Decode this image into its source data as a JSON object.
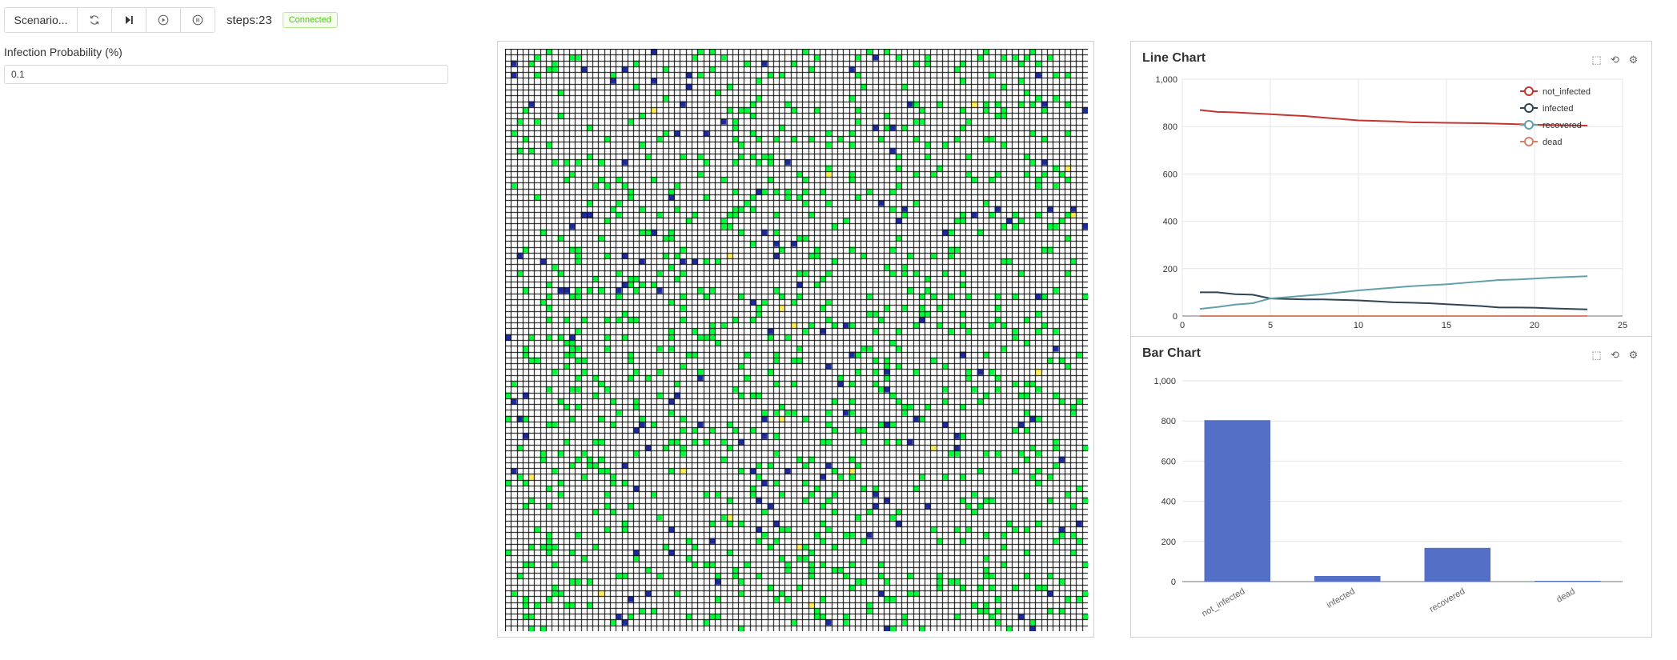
{
  "toolbar": {
    "scenario_label": "Scenario...",
    "reset_icon": "refresh-icon",
    "step_icon": "step-forward-icon",
    "play_icon": "play-circle-icon",
    "pause_icon": "pause-circle-icon",
    "steps_text": "steps:23",
    "status": "Connected"
  },
  "params": {
    "infection_probability": {
      "label": "Infection Probability (%)",
      "value": "0.1"
    }
  },
  "colors": {
    "empty": "#ffffff",
    "not_infected": "#00ff3a",
    "infected": "#1c2aa0",
    "recovered": "#ffee55",
    "gridline": "#000000",
    "bar": "#5470c6"
  },
  "line_chart": {
    "title": "Line Chart",
    "tool_icons": [
      "zoom-icon",
      "zoom-reset-icon",
      "gear-icon"
    ]
  },
  "bar_chart": {
    "title": "Bar Chart",
    "tool_icons": [
      "zoom-icon",
      "zoom-reset-icon",
      "gear-icon"
    ]
  },
  "chart_data": [
    {
      "type": "line",
      "title": "Line Chart",
      "xlim": [
        0,
        25
      ],
      "ylim": [
        0,
        1000
      ],
      "x_ticks": [
        "0",
        "5",
        "10",
        "15",
        "20",
        "25"
      ],
      "y_ticks": [
        "0",
        "200",
        "400",
        "600",
        "800",
        "1,000"
      ],
      "legend_position": "top-right",
      "grid": true,
      "x": [
        1,
        2,
        3,
        4,
        5,
        6,
        7,
        8,
        9,
        10,
        11,
        12,
        13,
        14,
        15,
        16,
        17,
        18,
        19,
        20,
        21,
        22,
        23
      ],
      "series": [
        {
          "name": "not_infected",
          "color": "#c23531",
          "values": [
            870,
            862,
            860,
            856,
            852,
            848,
            844,
            838,
            832,
            826,
            824,
            822,
            818,
            817,
            816,
            815,
            814,
            812,
            810,
            808,
            806,
            805,
            804
          ]
        },
        {
          "name": "infected",
          "color": "#2f4554",
          "values": [
            100,
            100,
            92,
            90,
            74,
            72,
            70,
            70,
            68,
            66,
            62,
            58,
            56,
            54,
            50,
            46,
            42,
            36,
            36,
            35,
            32,
            30,
            28
          ]
        },
        {
          "name": "recovered",
          "color": "#61a0a8",
          "values": [
            30,
            38,
            48,
            54,
            74,
            80,
            86,
            92,
            100,
            108,
            114,
            120,
            126,
            130,
            134,
            140,
            146,
            152,
            154,
            158,
            162,
            165,
            168
          ]
        },
        {
          "name": "dead",
          "color": "#d48265",
          "values": [
            0,
            0,
            0,
            0,
            0,
            0,
            0,
            0,
            0,
            0,
            0,
            0,
            0,
            0,
            0,
            0,
            0,
            0,
            0,
            0,
            0,
            0,
            0
          ]
        }
      ]
    },
    {
      "type": "bar",
      "title": "Bar Chart",
      "ylim": [
        0,
        1000
      ],
      "y_ticks": [
        "0",
        "200",
        "400",
        "600",
        "800",
        "1,000"
      ],
      "grid": true,
      "categories": [
        "not_infected",
        "infected",
        "recovered",
        "dead"
      ],
      "values": [
        804,
        28,
        168,
        0
      ]
    }
  ]
}
